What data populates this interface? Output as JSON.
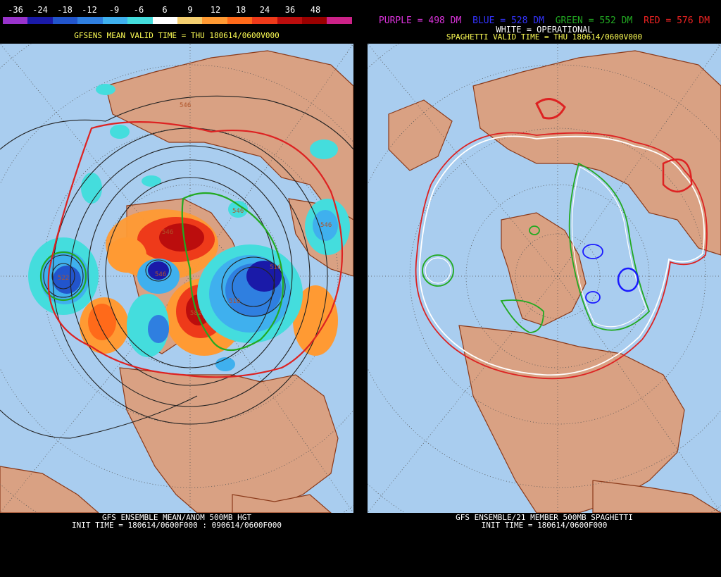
{
  "left": {
    "colorbar": {
      "ticks": [
        "-36",
        "-24",
        "-18",
        "-12",
        "-9",
        "-6",
        "6",
        "9",
        "12",
        "18",
        "24",
        "36",
        "48"
      ],
      "colors": [
        "#9933cc",
        "#1a1aa8",
        "#2255cc",
        "#2f7fe0",
        "#3fb0ee",
        "#44dddd",
        "#ffffff",
        "#f5cf70",
        "#ff9a33",
        "#ff6a1a",
        "#ee3a1a",
        "#bb0d0d",
        "#990000",
        "#cc2288"
      ]
    },
    "title": "GFSENS MEAN VALID TIME = THU 180614/0600V000",
    "footer_line1": "GFS ENSEMBLE MEAN/ANOM 500MB HGT",
    "footer_line2": "INIT TIME = 180614/0600F000 : 090614/0600F000",
    "contour_labels": [
      "546",
      "522",
      "546",
      "546",
      "546",
      "516",
      "516",
      "582",
      "546"
    ]
  },
  "right": {
    "legend": {
      "purple": "PURPLE = 498 DM",
      "blue": "BLUE = 528 DM",
      "green": "GREEN = 552 DM",
      "red": "RED = 576 DM",
      "white": "WHITE = OPERATIONAL"
    },
    "title": "SPAGHETTI VALID TIME = THU 180614/0600V000",
    "footer_line1": "GFS ENSEMBLE/21 MEMBER 500MB SPAGHETTI",
    "footer_line2": "INIT TIME = 180614/0600F000"
  },
  "colors": {
    "ocean": "#a9cdef",
    "land": "#d9a183",
    "coast": "#8b3a1a",
    "grid": "#666666"
  }
}
